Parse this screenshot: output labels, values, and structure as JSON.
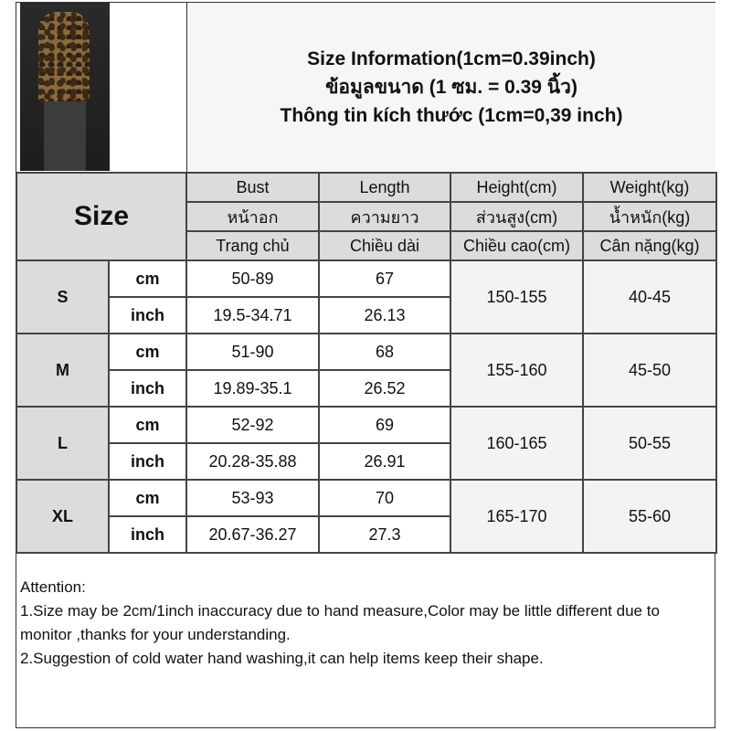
{
  "title": {
    "lines": [
      "Size Information(1cm=0.39inch)",
      "ข้อมูลขนาด (1 ซม. = 0.39 นิ้ว)",
      "Thông tin kích thước (1cm=0,39 inch)"
    ]
  },
  "table": {
    "size_label": "Size",
    "headers": [
      [
        "Bust",
        "หน้าอก",
        "Trang chủ"
      ],
      [
        "Length",
        "ความยาว",
        "Chiều dài"
      ],
      [
        "Height(cm)",
        "ส่วนสูง(cm)",
        "Chiều cao(cm)"
      ],
      [
        "Weight(kg)",
        "น้ำหนัก(kg)",
        "Cân nặng(kg)"
      ]
    ],
    "units": [
      "cm",
      "inch"
    ],
    "rows": [
      {
        "size": "S",
        "cm": [
          "50-89",
          "67"
        ],
        "inch": [
          "19.5-34.71",
          "26.13"
        ],
        "height": "150-155",
        "weight": "40-45"
      },
      {
        "size": "M",
        "cm": [
          "51-90",
          "68"
        ],
        "inch": [
          "19.89-35.1",
          "26.52"
        ],
        "height": "155-160",
        "weight": "45-50"
      },
      {
        "size": "L",
        "cm": [
          "52-92",
          "69"
        ],
        "inch": [
          "20.28-35.88",
          "26.91"
        ],
        "height": "160-165",
        "weight": "50-55"
      },
      {
        "size": "XL",
        "cm": [
          "53-93",
          "70"
        ],
        "inch": [
          "20.67-36.27",
          "27.3"
        ],
        "height": "165-170",
        "weight": "55-60"
      }
    ]
  },
  "notes": [
    "Attention:",
    "1.Size may be 2cm/1inch inaccuracy due to hand measure,Color may be little different due to monitor ,thanks for your understanding.",
    "2.Suggestion of cold water hand washing,it can help items keep their shape."
  ]
}
